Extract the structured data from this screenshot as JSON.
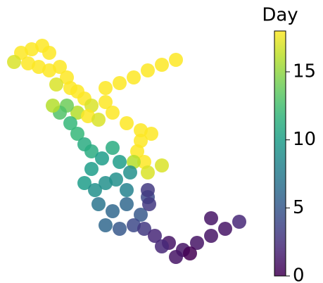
{
  "chart_data": {
    "type": "scatter",
    "colormap": "viridis",
    "xlim": [
      0,
      360
    ],
    "ylim": [
      0,
      400
    ],
    "x": [
      30,
      45,
      60,
      70,
      40,
      55,
      70,
      20,
      85,
      95,
      80,
      100,
      110,
      150,
      170,
      190,
      210,
      230,
      250,
      120,
      130,
      150,
      110,
      125,
      140,
      160,
      180,
      200,
      215,
      200,
      195,
      205,
      210,
      190,
      95,
      85,
      100,
      110,
      120,
      130,
      145,
      160,
      170,
      185,
      130,
      120,
      135,
      150,
      165,
      180,
      140,
      160,
      180,
      200,
      210,
      150,
      170,
      190,
      205,
      220,
      240,
      260,
      250,
      280,
      300,
      320,
      340,
      230,
      270,
      210,
      212,
      75,
      300,
      230
    ],
    "y": [
      325,
      330,
      335,
      325,
      310,
      305,
      300,
      312,
      305,
      290,
      280,
      275,
      270,
      275,
      282,
      290,
      300,
      308,
      315,
      260,
      250,
      255,
      240,
      235,
      230,
      240,
      225,
      215,
      210,
      200,
      185,
      170,
      155,
      170,
      250,
      240,
      225,
      210,
      195,
      185,
      175,
      190,
      170,
      155,
      160,
      140,
      130,
      140,
      145,
      130,
      110,
      100,
      110,
      95,
      120,
      80,
      75,
      80,
      75,
      65,
      55,
      45,
      35,
      55,
      65,
      75,
      85,
      50,
      40,
      130,
      110,
      250,
      90,
      165
    ],
    "values": [
      18,
      18,
      18,
      18,
      18,
      18,
      18,
      17,
      18,
      18,
      17,
      18,
      18,
      18,
      18,
      18,
      18,
      18,
      18,
      18,
      17,
      18,
      16,
      18,
      17,
      18,
      18,
      18,
      18,
      18,
      18,
      18,
      17,
      16,
      14,
      13,
      12,
      12,
      11,
      11,
      10,
      11,
      10,
      9,
      10,
      10,
      9,
      9,
      9,
      8,
      7,
      6,
      6,
      5,
      4,
      6,
      5,
      4,
      3,
      2,
      1,
      1,
      1,
      1,
      1,
      1,
      2,
      2,
      0,
      3,
      3,
      16,
      1,
      17
    ],
    "colorbar": {
      "label": "Day",
      "lim": [
        0,
        18
      ],
      "ticks": [
        0,
        5,
        10,
        15
      ]
    }
  }
}
